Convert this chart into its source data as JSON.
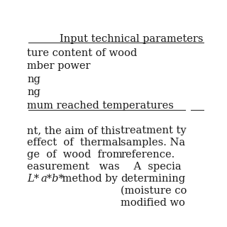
{
  "title": "Input technical parameters",
  "table_rows": [
    "ture content of wood",
    "mber power",
    "ng",
    "ng",
    "mum reached temperatures"
  ],
  "left_text_lines": [
    "nt, the aim of this",
    "effect  of  thermal",
    "ge  of  wood  from",
    "easurement   was",
    "L*a*b* method by"
  ],
  "right_text_lines": [
    "treatment ty",
    "samples. Na",
    "reference.",
    "    A  specia",
    "determining",
    "(moisture co",
    "modified wo"
  ],
  "bg_color": "#ffffff",
  "text_color": "#1a1a1a",
  "font_size_title": 10.5,
  "font_size_body": 10.5,
  "line_color": "#333333"
}
